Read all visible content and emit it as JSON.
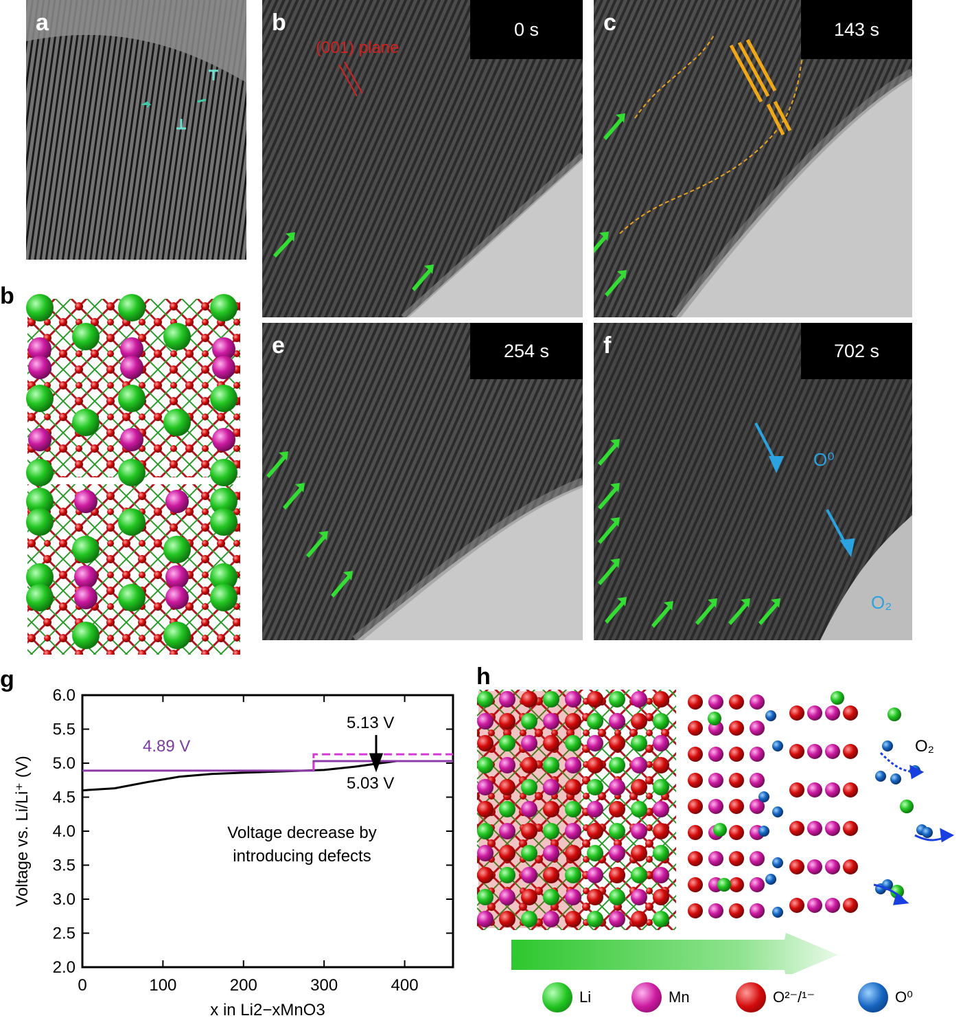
{
  "panels": {
    "a": {
      "label": "a"
    },
    "b_tem": {
      "label": "b",
      "time": "0 s",
      "plane_label": "(001) plane"
    },
    "c": {
      "label": "c",
      "time": "143 s"
    },
    "b_struct": {
      "label": "b"
    },
    "e": {
      "label": "e",
      "time": "254 s"
    },
    "f": {
      "label": "f",
      "time": "702 s",
      "o0_label": "O⁰",
      "o2_label": "O₂"
    },
    "g": {
      "label": "g"
    },
    "h": {
      "label": "h",
      "o2_label": "O₂"
    }
  },
  "legend": {
    "items": [
      {
        "symbol": "Li",
        "color": "#22c522"
      },
      {
        "symbol": "Mn",
        "color": "#cc1aa0"
      },
      {
        "symbol": "O²⁻/¹⁻",
        "color": "#d40b0b"
      },
      {
        "symbol": "O⁰",
        "color": "#1565c0"
      }
    ]
  },
  "chart_data": {
    "type": "line",
    "xlabel": "x in Li2−xMnO3",
    "ylabel": "Voltage vs. Li/Li⁺ (V)",
    "xlim": [
      0,
      460
    ],
    "ylim": [
      2.0,
      6.0
    ],
    "xticks": [
      0,
      100,
      200,
      300,
      400
    ],
    "yticks": [
      2.0,
      2.5,
      3.0,
      3.5,
      4.0,
      4.5,
      5.0,
      5.5,
      6.0
    ],
    "series": [
      {
        "style": "black-solid",
        "color": "#000000",
        "x": [
          0,
          40,
          80,
          120,
          160,
          200,
          250,
          300,
          340,
          370,
          390
        ],
        "y": [
          4.6,
          4.63,
          4.72,
          4.8,
          4.84,
          4.86,
          4.88,
          4.9,
          4.95,
          5.0,
          5.03
        ]
      },
      {
        "style": "purple-solid",
        "color": "#8b3aa8",
        "x": [
          0,
          287,
          287,
          460
        ],
        "y": [
          4.89,
          4.89,
          5.03,
          5.03
        ]
      },
      {
        "style": "magenta-dashed",
        "color": "#d63ad6",
        "x": [
          287,
          287,
          460
        ],
        "y": [
          4.89,
          5.13,
          5.13
        ]
      }
    ],
    "annotations": {
      "v_489": "4.89 V",
      "v_513": "5.13 V",
      "v_503": "5.03 V",
      "note_line1": "Voltage decrease by",
      "note_line2": "introducing defects"
    }
  }
}
